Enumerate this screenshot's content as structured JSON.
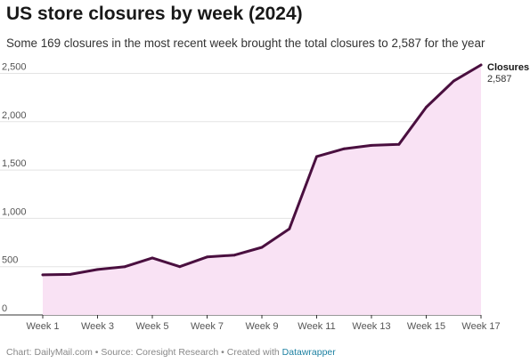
{
  "title": "US store closures by week (2024)",
  "subtitle": "Some 169 closures in the most recent week brought the total closures to 2,587 for the year",
  "footer": {
    "text": "Chart: DailyMail.com • Source: Coresight Research • Created with ",
    "link": "Datawrapper"
  },
  "colors": {
    "line": "#4a0f3f",
    "area": "#f9e2f4",
    "grid": "#e3e3e3",
    "axis": "#333333",
    "link": "#1d81a2"
  },
  "chart_data": {
    "type": "area",
    "x": [
      1,
      2,
      3,
      4,
      5,
      6,
      7,
      8,
      9,
      10,
      11,
      12,
      13,
      14,
      15,
      16,
      17
    ],
    "tick_labels": [
      "Week 1",
      "Week 3",
      "Week 5",
      "Week 7",
      "Week 9",
      "Week 11",
      "Week 13",
      "Week 15",
      "Week 17"
    ],
    "tick_positions": [
      1,
      3,
      5,
      7,
      9,
      11,
      13,
      15,
      17
    ],
    "y_ticks": [
      0,
      500,
      1000,
      1500,
      2000,
      2500
    ],
    "y_tick_labels": [
      "0",
      "500",
      "1,000",
      "1,500",
      "2,000",
      "2,500"
    ],
    "ylim": [
      0,
      2587
    ],
    "xlim": [
      1,
      17
    ],
    "grid": true,
    "series": [
      {
        "name": "Closures",
        "values": [
          415,
          420,
          470,
          500,
          590,
          500,
          600,
          620,
          700,
          890,
          1640,
          1720,
          1755,
          1765,
          2150,
          2420,
          2587
        ]
      }
    ],
    "end_label": {
      "name": "Closures",
      "value": "2,587"
    }
  }
}
